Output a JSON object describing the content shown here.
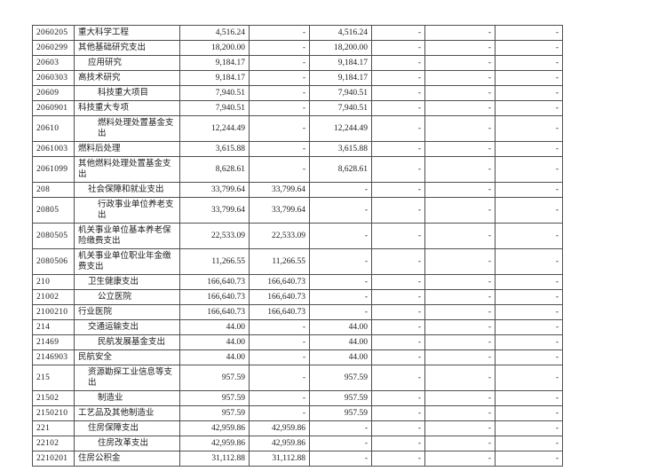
{
  "page": {
    "background_color": "#ffffff",
    "text_color": "#1c1c1c",
    "border_color": "#4f4f4f"
  },
  "table": {
    "column_count": 8,
    "header_visible": false,
    "rows": [
      {
        "code": "2060205",
        "name": "重大科学工程",
        "indent": 0,
        "values": [
          "4,516.24",
          "-",
          "4,516.24",
          "-",
          "-",
          "-"
        ]
      },
      {
        "code": "2060299",
        "name": "其他基础研究支出",
        "indent": 0,
        "values": [
          "18,200.00",
          "-",
          "18,200.00",
          "-",
          "-",
          "-"
        ]
      },
      {
        "code": "20603",
        "name": "应用研究",
        "indent": 1,
        "values": [
          "9,184.17",
          "-",
          "9,184.17",
          "-",
          "-",
          "-"
        ]
      },
      {
        "code": "2060303",
        "name": "高技术研究",
        "indent": 0,
        "values": [
          "9,184.17",
          "-",
          "9,184.17",
          "-",
          "-",
          "-"
        ]
      },
      {
        "code": "20609",
        "name": "科技重大项目",
        "indent": 2,
        "values": [
          "7,940.51",
          "-",
          "7,940.51",
          "-",
          "-",
          "-"
        ]
      },
      {
        "code": "2060901",
        "name": "科技重大专项",
        "indent": 0,
        "values": [
          "7,940.51",
          "-",
          "7,940.51",
          "-",
          "-",
          "-"
        ]
      },
      {
        "code": "20610",
        "name": "燃料处理处置基金支出",
        "indent": 2,
        "values": [
          "12,244.49",
          "-",
          "12,244.49",
          "-",
          "-",
          "-"
        ]
      },
      {
        "code": "2061003",
        "name": "燃料后处理",
        "indent": 0,
        "values": [
          "3,615.88",
          "-",
          "3,615.88",
          "-",
          "-",
          "-"
        ]
      },
      {
        "code": "2061099",
        "name": "其他燃料处理处置基金支出",
        "indent": 0,
        "values": [
          "8,628.61",
          "-",
          "8,628.61",
          "-",
          "-",
          "-"
        ]
      },
      {
        "code": "208",
        "name": "社会保障和就业支出",
        "indent": 1,
        "values": [
          "33,799.64",
          "33,799.64",
          "-",
          "-",
          "-",
          "-"
        ]
      },
      {
        "code": "20805",
        "name": "行政事业单位养老支出",
        "indent": 2,
        "values": [
          "33,799.64",
          "33,799.64",
          "-",
          "-",
          "-",
          "-"
        ]
      },
      {
        "code": "2080505",
        "name": "机关事业单位基本养老保险缴费支出",
        "indent": 0,
        "values": [
          "22,533.09",
          "22,533.09",
          "-",
          "-",
          "-",
          "-"
        ]
      },
      {
        "code": "2080506",
        "name": "机关事业单位职业年金缴费支出",
        "indent": 0,
        "values": [
          "11,266.55",
          "11,266.55",
          "-",
          "-",
          "-",
          "-"
        ]
      },
      {
        "code": "210",
        "name": "卫生健康支出",
        "indent": 1,
        "values": [
          "166,640.73",
          "166,640.73",
          "-",
          "-",
          "-",
          "-"
        ]
      },
      {
        "code": "21002",
        "name": "公立医院",
        "indent": 2,
        "values": [
          "166,640.73",
          "166,640.73",
          "-",
          "-",
          "-",
          "-"
        ]
      },
      {
        "code": "2100210",
        "name": "行业医院",
        "indent": 0,
        "values": [
          "166,640.73",
          "166,640.73",
          "-",
          "-",
          "-",
          "-"
        ]
      },
      {
        "code": "214",
        "name": "交通运输支出",
        "indent": 1,
        "values": [
          "44.00",
          "-",
          "44.00",
          "-",
          "-",
          "-"
        ]
      },
      {
        "code": "21469",
        "name": "民航发展基金支出",
        "indent": 2,
        "values": [
          "44.00",
          "-",
          "44.00",
          "-",
          "-",
          "-"
        ]
      },
      {
        "code": "2146903",
        "name": "民航安全",
        "indent": 0,
        "values": [
          "44.00",
          "-",
          "44.00",
          "-",
          "-",
          "-"
        ]
      },
      {
        "code": "215",
        "name": "资源勘探工业信息等支出",
        "indent": 1,
        "values": [
          "957.59",
          "-",
          "957.59",
          "-",
          "-",
          "-"
        ]
      },
      {
        "code": "21502",
        "name": "制造业",
        "indent": 2,
        "values": [
          "957.59",
          "-",
          "957.59",
          "-",
          "-",
          "-"
        ]
      },
      {
        "code": "2150210",
        "name": "工艺品及其他制造业",
        "indent": 0,
        "values": [
          "957.59",
          "-",
          "957.59",
          "-",
          "-",
          "-"
        ]
      },
      {
        "code": "221",
        "name": "住房保障支出",
        "indent": 1,
        "values": [
          "42,959.86",
          "42,959.86",
          "-",
          "-",
          "-",
          "-"
        ]
      },
      {
        "code": "22102",
        "name": "住房改革支出",
        "indent": 2,
        "values": [
          "42,959.86",
          "42,959.86",
          "-",
          "-",
          "-",
          "-"
        ]
      },
      {
        "code": "2210201",
        "name": "住房公积金",
        "indent": 0,
        "values": [
          "31,112.88",
          "31,112.88",
          "-",
          "-",
          "-",
          "-"
        ]
      }
    ]
  }
}
